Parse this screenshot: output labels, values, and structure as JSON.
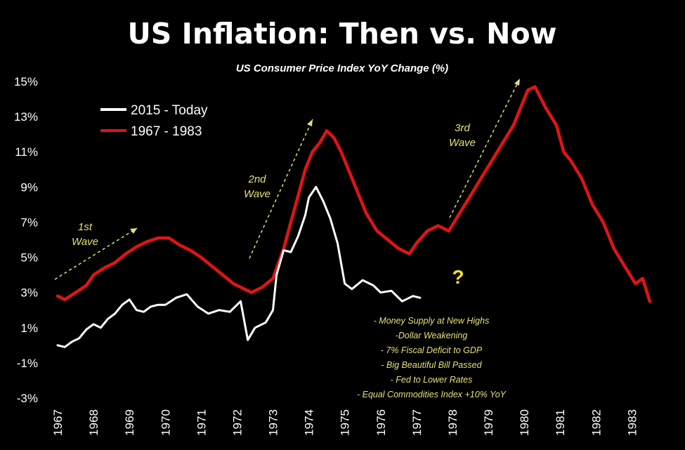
{
  "colors": {
    "background": "#000000",
    "series_current": "#ffffff",
    "series_1970s": "#e01414",
    "annotation": "#e5e07a",
    "question_mark": "#f3dd2a"
  },
  "chart_data": {
    "type": "line",
    "title": "US Inflation: Then vs. Now",
    "subtitle": "US Consumer Price Index YoY Change (%)",
    "ylim": [
      -3,
      15
    ],
    "y_ticks": [
      "15%",
      "13%",
      "11%",
      "9%",
      "7%",
      "5%",
      "3%",
      "1%",
      "-1%",
      "-3%"
    ],
    "x_ticks": [
      "1967",
      "1968",
      "1969",
      "1970",
      "1971",
      "1972",
      "1973",
      "1974",
      "1975",
      "1976",
      "1977",
      "1978",
      "1979",
      "1980",
      "1981",
      "1982",
      "1983"
    ],
    "xlim": [
      1967,
      1983.6
    ],
    "grid": false,
    "legend_position": "top-left",
    "series": [
      {
        "name": "2015 - Today",
        "color": "#ffffff",
        "x": [
          1967.0,
          1967.2,
          1967.4,
          1967.6,
          1967.8,
          1968.0,
          1968.2,
          1968.4,
          1968.6,
          1968.8,
          1969.0,
          1969.2,
          1969.4,
          1969.6,
          1969.8,
          1970.0,
          1970.3,
          1970.6,
          1970.9,
          1971.2,
          1971.5,
          1971.8,
          1972.0,
          1972.1,
          1972.3,
          1972.5,
          1972.8,
          1973.0,
          1973.1,
          1973.3,
          1973.5,
          1973.7,
          1973.9,
          1974.0,
          1974.2,
          1974.4,
          1974.6,
          1974.8,
          1975.0,
          1975.2,
          1975.5,
          1975.8,
          1976.0,
          1976.3,
          1976.6,
          1976.9,
          1977.1
        ],
        "y": [
          0.0,
          -0.1,
          0.2,
          0.4,
          0.9,
          1.2,
          1.0,
          1.5,
          1.8,
          2.3,
          2.6,
          2.0,
          1.9,
          2.2,
          2.3,
          2.3,
          2.7,
          2.9,
          2.2,
          1.8,
          2.0,
          1.9,
          2.3,
          2.5,
          0.3,
          1.0,
          1.3,
          2.0,
          4.0,
          5.4,
          5.3,
          6.2,
          7.4,
          8.4,
          9.0,
          8.2,
          7.2,
          5.8,
          3.5,
          3.2,
          3.7,
          3.4,
          3.0,
          3.1,
          2.5,
          2.8,
          2.7
        ]
      },
      {
        "name": "1967 - 1983",
        "color": "#e01414",
        "x": [
          1967.0,
          1967.2,
          1967.5,
          1967.8,
          1968.0,
          1968.3,
          1968.6,
          1968.9,
          1969.2,
          1969.5,
          1969.8,
          1970.1,
          1970.4,
          1970.7,
          1971.0,
          1971.3,
          1971.6,
          1971.9,
          1972.1,
          1972.4,
          1972.7,
          1973.0,
          1973.3,
          1973.5,
          1973.7,
          1973.9,
          1974.1,
          1974.3,
          1974.5,
          1974.7,
          1974.9,
          1975.1,
          1975.3,
          1975.6,
          1975.9,
          1976.2,
          1976.5,
          1976.8,
          1977.0,
          1977.3,
          1977.6,
          1977.9,
          1978.2,
          1978.5,
          1978.8,
          1979.1,
          1979.4,
          1979.7,
          1979.9,
          1980.1,
          1980.3,
          1980.6,
          1980.9,
          1981.1,
          1981.3,
          1981.6,
          1981.9,
          1982.2,
          1982.5,
          1982.8,
          1983.1,
          1983.3,
          1983.5
        ],
        "y": [
          2.8,
          2.6,
          3.0,
          3.4,
          4.0,
          4.4,
          4.7,
          5.2,
          5.6,
          5.9,
          6.1,
          6.1,
          5.7,
          5.4,
          5.0,
          4.5,
          4.0,
          3.5,
          3.3,
          3.0,
          3.3,
          3.8,
          5.5,
          7.0,
          8.5,
          10.0,
          11.0,
          11.5,
          12.2,
          11.8,
          11.0,
          10.0,
          9.0,
          7.5,
          6.5,
          6.0,
          5.5,
          5.2,
          5.8,
          6.5,
          6.8,
          6.5,
          7.5,
          8.5,
          9.5,
          10.5,
          11.5,
          12.5,
          13.5,
          14.5,
          14.7,
          13.5,
          12.5,
          11.0,
          10.5,
          9.5,
          8.0,
          7.0,
          5.5,
          4.5,
          3.5,
          3.8,
          2.5
        ]
      }
    ]
  },
  "annotations": {
    "wave1": [
      "1st",
      "Wave"
    ],
    "wave2": [
      "2nd",
      "Wave"
    ],
    "wave3": [
      "3rd",
      "Wave"
    ],
    "question": "?",
    "notes": [
      "- Money Supply at New Highs",
      "-Dollar Weakening",
      "- 7% Fiscal Deficit to GDP",
      "- Big Beautiful Bill Passed",
      "- Fed to Lower Rates",
      "- Equal Commodities Index +10% YoY"
    ]
  }
}
